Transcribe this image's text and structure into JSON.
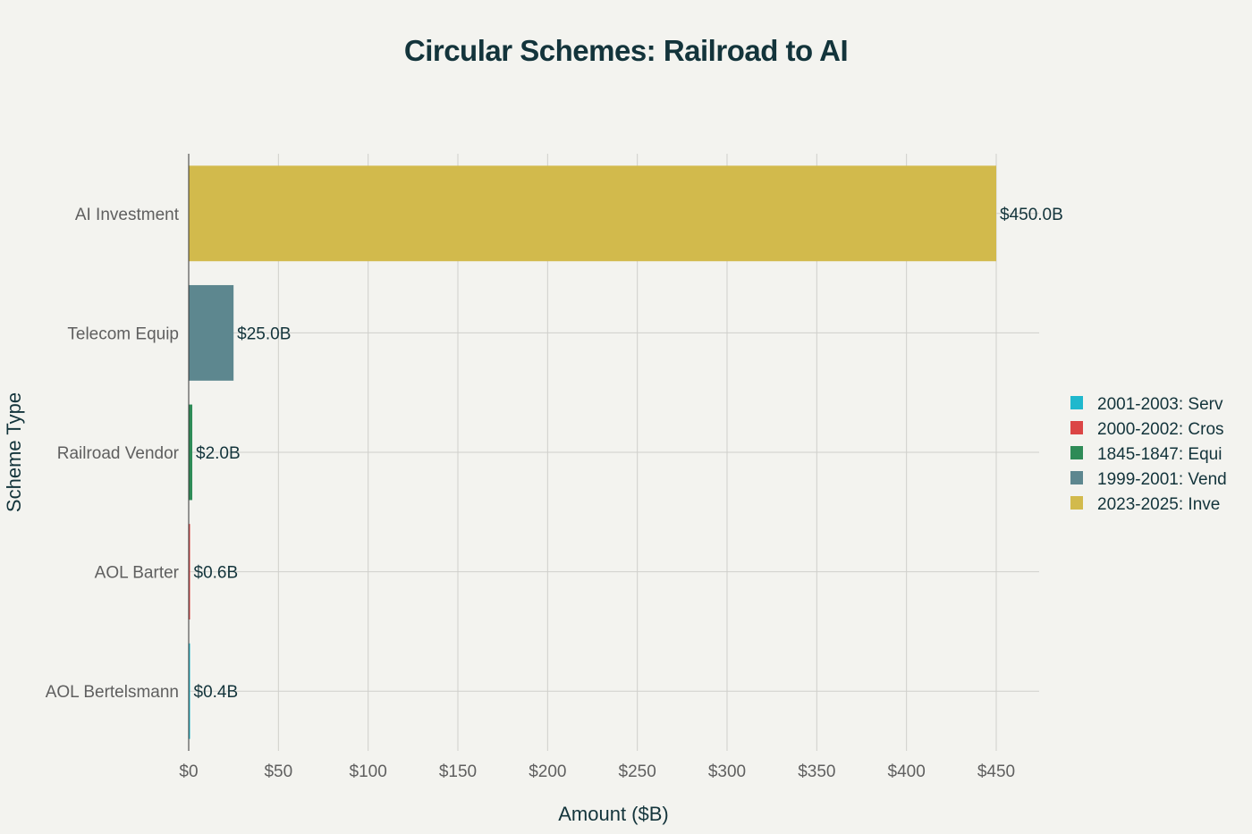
{
  "chart_data": {
    "type": "bar",
    "orientation": "horizontal",
    "title": "Circular Schemes: Railroad to AI",
    "xlabel": "Amount ($B)",
    "ylabel": "Scheme Type",
    "xlim": [
      0,
      475
    ],
    "x_ticks": [
      0,
      50,
      100,
      150,
      200,
      250,
      300,
      350,
      400,
      450
    ],
    "x_tick_labels": [
      "$0",
      "$50",
      "$100",
      "$150",
      "$200",
      "$250",
      "$300",
      "$350",
      "$400",
      "$450"
    ],
    "grid": true,
    "legend_position": "right",
    "categories": [
      "AI Investment",
      "Telecom Equip",
      "Railroad Vendor",
      "AOL Barter",
      "AOL Bertelsmann"
    ],
    "series": [
      {
        "name": "2001-2003: Serv",
        "category": "AOL Bertelsmann",
        "value": 0.4,
        "label": "$0.4B",
        "color": "#1fb8cd"
      },
      {
        "name": "2000-2002: Cros",
        "category": "AOL Barter",
        "value": 0.6,
        "label": "$0.6B",
        "color": "#db4545"
      },
      {
        "name": "1845-1847: Equi",
        "category": "Railroad Vendor",
        "value": 2.0,
        "label": "$2.0B",
        "color": "#2e8b57"
      },
      {
        "name": "1999-2001: Vend",
        "category": "Telecom Equip",
        "value": 25.0,
        "label": "$25.0B",
        "color": "#5d878f"
      },
      {
        "name": "2023-2025: Inve",
        "category": "AI Investment",
        "value": 450.0,
        "label": "$450.0B",
        "color": "#d2ba4c"
      }
    ]
  }
}
